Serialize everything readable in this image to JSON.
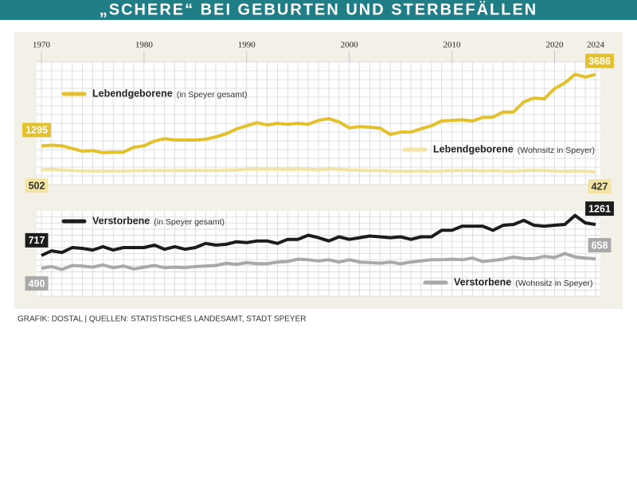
{
  "title": "„SCHERE“ BEI GEBURTEN UND STERBEFÄLLEN",
  "source": "GRAFIK: DOSTAL | QUELLEN: STATISTISCHES LANDESAMT, STADT SPEYER",
  "chart_data": [
    {
      "type": "line",
      "x": [
        1970,
        1971,
        1972,
        1973,
        1974,
        1975,
        1976,
        1977,
        1978,
        1979,
        1980,
        1981,
        1982,
        1983,
        1984,
        1985,
        1986,
        1987,
        1988,
        1989,
        1990,
        1991,
        1992,
        1993,
        1994,
        1995,
        1996,
        1997,
        1998,
        1999,
        2000,
        2001,
        2002,
        2003,
        2004,
        2005,
        2006,
        2007,
        2008,
        2009,
        2010,
        2011,
        2012,
        2013,
        2014,
        2015,
        2016,
        2017,
        2018,
        2019,
        2020,
        2021,
        2022,
        2023,
        2024
      ],
      "xlim": [
        1970,
        2024
      ],
      "xticks": [
        1970,
        1980,
        1990,
        2000,
        2010,
        2020,
        2024
      ],
      "ylim": [
        0,
        4100
      ],
      "series": [
        {
          "name": "Lebendgeborene",
          "detail": "(in Speyer gesamt)",
          "color": "#e3c12d",
          "values": [
            1295,
            1320,
            1300,
            1210,
            1120,
            1140,
            1070,
            1090,
            1090,
            1250,
            1300,
            1460,
            1540,
            1490,
            1490,
            1490,
            1520,
            1600,
            1700,
            1860,
            1970,
            2070,
            2000,
            2050,
            2020,
            2050,
            2020,
            2150,
            2210,
            2100,
            1900,
            1940,
            1920,
            1890,
            1680,
            1760,
            1760,
            1870,
            1970,
            2130,
            2150,
            2170,
            2130,
            2250,
            2260,
            2430,
            2430,
            2770,
            2900,
            2870,
            3210,
            3400,
            3690,
            3600,
            3686
          ]
        },
        {
          "name": "Lebendgeborene",
          "detail": "(Wohnsitz in Speyer)",
          "color": "#f3e4a4",
          "values": [
            502,
            510,
            490,
            470,
            460,
            460,
            455,
            460,
            460,
            465,
            470,
            470,
            475,
            470,
            475,
            480,
            470,
            475,
            480,
            490,
            510,
            520,
            510,
            520,
            515,
            520,
            510,
            500,
            525,
            510,
            490,
            480,
            470,
            470,
            460,
            450,
            450,
            460,
            450,
            460,
            470,
            470,
            480,
            460,
            470,
            460,
            450,
            470,
            480,
            470,
            460,
            450,
            460,
            450,
            427
          ]
        }
      ]
    },
    {
      "type": "line",
      "x": [
        1970,
        1971,
        1972,
        1973,
        1974,
        1975,
        1976,
        1977,
        1978,
        1979,
        1980,
        1981,
        1982,
        1983,
        1984,
        1985,
        1986,
        1987,
        1988,
        1989,
        1990,
        1991,
        1992,
        1993,
        1994,
        1995,
        1996,
        1997,
        1998,
        1999,
        2000,
        2001,
        2002,
        2003,
        2004,
        2005,
        2006,
        2007,
        2008,
        2009,
        2010,
        2011,
        2012,
        2013,
        2014,
        2015,
        2016,
        2017,
        2018,
        2019,
        2020,
        2021,
        2022,
        2023,
        2024
      ],
      "xlim": [
        1970,
        2024
      ],
      "ylim": [
        0,
        1500
      ],
      "series": [
        {
          "name": "Verstorbene",
          "detail": "(in Speyer gesamt)",
          "color": "#1c1c1c",
          "values": [
            717,
            797,
            768,
            855,
            841,
            812,
            870,
            812,
            855,
            855,
            855,
            899,
            826,
            870,
            826,
            855,
            928,
            899,
            913,
            957,
            942,
            971,
            971,
            928,
            1000,
            1000,
            1073,
            1029,
            971,
            1044,
            1000,
            1029,
            1058,
            1044,
            1029,
            1044,
            1000,
            1044,
            1044,
            1160,
            1160,
            1232,
            1232,
            1232,
            1160,
            1247,
            1261,
            1334,
            1247,
            1232,
            1247,
            1261,
            1421,
            1290,
            1261
          ]
        },
        {
          "name": "Verstorbene",
          "detail": "(Wohnsitz in Speyer)",
          "color": "#a9a9a9",
          "values": [
            490,
            520,
            470,
            540,
            530,
            510,
            550,
            500,
            530,
            480,
            510,
            540,
            500,
            510,
            500,
            520,
            530,
            540,
            580,
            560,
            590,
            570,
            570,
            600,
            610,
            650,
            640,
            620,
            640,
            600,
            640,
            600,
            590,
            580,
            600,
            570,
            600,
            620,
            640,
            640,
            650,
            640,
            670,
            610,
            630,
            650,
            690,
            660,
            660,
            700,
            680,
            750,
            690,
            670,
            658
          ]
        }
      ]
    }
  ]
}
